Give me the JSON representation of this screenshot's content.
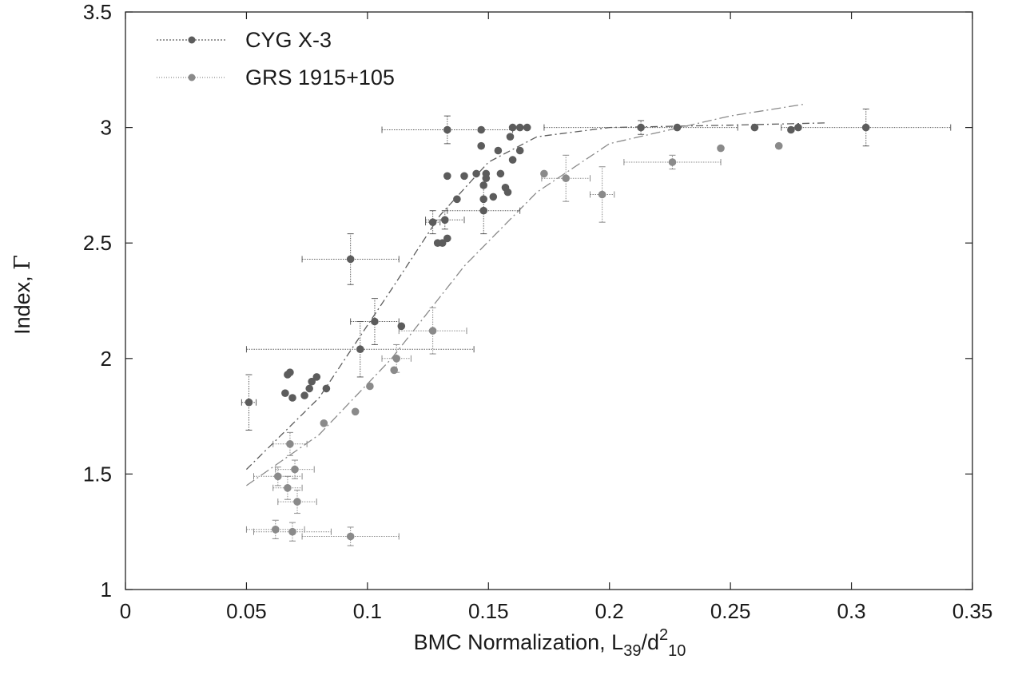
{
  "chart_data": {
    "type": "scatter",
    "xlabel": {
      "main": "BMC Normalization, L",
      "sub1": "39",
      "mid": "/d",
      "sup": "2",
      "sub2": "10"
    },
    "ylabel": {
      "main": "Index, ",
      "symbol": "Γ"
    },
    "xlim": [
      0,
      0.35
    ],
    "ylim": [
      1,
      3.5
    ],
    "xticks": [
      0,
      0.05,
      0.1,
      0.15,
      0.2,
      0.25,
      0.3,
      0.35
    ],
    "xtick_labels": [
      "0",
      "0.05",
      "0.1",
      "0.15",
      "0.2",
      "0.25",
      "0.3",
      "0.35"
    ],
    "yticks": [
      1,
      1.5,
      2,
      2.5,
      3,
      3.5
    ],
    "ytick_labels": [
      "1",
      "1.5",
      "2",
      "2.5",
      "3",
      "3.5"
    ],
    "grid": false,
    "legend_position": "top-left",
    "series": [
      {
        "name": "CYG X-3",
        "color": "#5c5c5c",
        "points": [
          {
            "x": 0.051,
            "y": 1.81,
            "xerr": 0.003,
            "yerr": 0.12
          },
          {
            "x": 0.066,
            "y": 1.85
          },
          {
            "x": 0.067,
            "y": 1.93
          },
          {
            "x": 0.068,
            "y": 1.94
          },
          {
            "x": 0.069,
            "y": 1.83
          },
          {
            "x": 0.074,
            "y": 1.84
          },
          {
            "x": 0.076,
            "y": 1.87
          },
          {
            "x": 0.077,
            "y": 1.9
          },
          {
            "x": 0.079,
            "y": 1.92
          },
          {
            "x": 0.083,
            "y": 1.87
          },
          {
            "x": 0.093,
            "y": 2.43,
            "xerr": 0.02,
            "yerr": 0.11
          },
          {
            "x": 0.097,
            "y": 2.04,
            "xerr": 0.047,
            "yerr": 0.12
          },
          {
            "x": 0.103,
            "y": 2.16,
            "xerr": 0.01,
            "yerr": 0.1
          },
          {
            "x": 0.114,
            "y": 2.14
          },
          {
            "x": 0.127,
            "y": 2.59,
            "xerr": 0.003,
            "yerr": 0.05
          },
          {
            "x": 0.129,
            "y": 2.5
          },
          {
            "x": 0.131,
            "y": 2.5
          },
          {
            "x": 0.132,
            "y": 2.6,
            "xerr": 0.008,
            "yerr": 0.04
          },
          {
            "x": 0.133,
            "y": 2.52
          },
          {
            "x": 0.133,
            "y": 2.99,
            "xerr": 0.027,
            "yerr": 0.06
          },
          {
            "x": 0.133,
            "y": 2.79
          },
          {
            "x": 0.137,
            "y": 2.69
          },
          {
            "x": 0.14,
            "y": 2.79
          },
          {
            "x": 0.145,
            "y": 2.8
          },
          {
            "x": 0.147,
            "y": 2.99
          },
          {
            "x": 0.147,
            "y": 2.92
          },
          {
            "x": 0.148,
            "y": 2.75
          },
          {
            "x": 0.148,
            "y": 2.69
          },
          {
            "x": 0.148,
            "y": 2.64,
            "xerr": 0.015,
            "yerr": 0.1
          },
          {
            "x": 0.149,
            "y": 2.78
          },
          {
            "x": 0.149,
            "y": 2.8
          },
          {
            "x": 0.152,
            "y": 2.7
          },
          {
            "x": 0.154,
            "y": 2.9
          },
          {
            "x": 0.155,
            "y": 2.8
          },
          {
            "x": 0.157,
            "y": 2.74
          },
          {
            "x": 0.158,
            "y": 2.72
          },
          {
            "x": 0.159,
            "y": 2.96
          },
          {
            "x": 0.16,
            "y": 3.0
          },
          {
            "x": 0.16,
            "y": 2.86
          },
          {
            "x": 0.163,
            "y": 3.0
          },
          {
            "x": 0.163,
            "y": 2.9
          },
          {
            "x": 0.166,
            "y": 3.0
          },
          {
            "x": 0.213,
            "y": 3.0,
            "xerr": 0.04,
            "yerr": 0.03
          },
          {
            "x": 0.228,
            "y": 3.0
          },
          {
            "x": 0.26,
            "y": 3.0
          },
          {
            "x": 0.275,
            "y": 2.99
          },
          {
            "x": 0.278,
            "y": 3.0
          },
          {
            "x": 0.306,
            "y": 3.0,
            "xerr": 0.035,
            "yerr": 0.08
          }
        ]
      },
      {
        "name": "GRS 1915+105",
        "color": "#8a8a8a",
        "points": [
          {
            "x": 0.063,
            "y": 1.49,
            "xerr": 0.01,
            "yerr": 0.04
          },
          {
            "x": 0.062,
            "y": 1.26,
            "xerr": 0.012,
            "yerr": 0.04
          },
          {
            "x": 0.067,
            "y": 1.44,
            "xerr": 0.006,
            "yerr": 0.05
          },
          {
            "x": 0.068,
            "y": 1.63,
            "xerr": 0.007,
            "yerr": 0.05
          },
          {
            "x": 0.069,
            "y": 1.25,
            "xerr": 0.016,
            "yerr": 0.04
          },
          {
            "x": 0.07,
            "y": 1.52,
            "xerr": 0.008,
            "yerr": 0.04
          },
          {
            "x": 0.071,
            "y": 1.38,
            "xerr": 0.008,
            "yerr": 0.05
          },
          {
            "x": 0.082,
            "y": 1.72
          },
          {
            "x": 0.093,
            "y": 1.23,
            "xerr": 0.02,
            "yerr": 0.04
          },
          {
            "x": 0.095,
            "y": 1.77
          },
          {
            "x": 0.101,
            "y": 1.88
          },
          {
            "x": 0.111,
            "y": 1.95
          },
          {
            "x": 0.112,
            "y": 2.0,
            "xerr": 0.006,
            "yerr": 0.06
          },
          {
            "x": 0.127,
            "y": 2.12,
            "xerr": 0.014,
            "yerr": 0.1
          },
          {
            "x": 0.173,
            "y": 2.8
          },
          {
            "x": 0.182,
            "y": 2.78,
            "xerr": 0.01,
            "yerr": 0.1
          },
          {
            "x": 0.197,
            "y": 2.71,
            "xerr": 0.005,
            "yerr": 0.12
          },
          {
            "x": 0.226,
            "y": 2.85,
            "xerr": 0.02,
            "yerr": 0.03
          },
          {
            "x": 0.246,
            "y": 2.91
          },
          {
            "x": 0.27,
            "y": 2.92
          }
        ]
      }
    ],
    "fit_lines": [
      {
        "series": "CYG X-3",
        "x": [
          0.05,
          0.08,
          0.11,
          0.13,
          0.15,
          0.17,
          0.2,
          0.25,
          0.29
        ],
        "y": [
          1.52,
          1.83,
          2.3,
          2.62,
          2.85,
          2.96,
          3.0,
          3.01,
          3.02
        ]
      },
      {
        "series": "GRS 1915+105",
        "x": [
          0.05,
          0.08,
          0.11,
          0.14,
          0.17,
          0.2,
          0.25,
          0.28
        ],
        "y": [
          1.45,
          1.67,
          2.0,
          2.4,
          2.72,
          2.93,
          3.05,
          3.1
        ]
      }
    ]
  }
}
